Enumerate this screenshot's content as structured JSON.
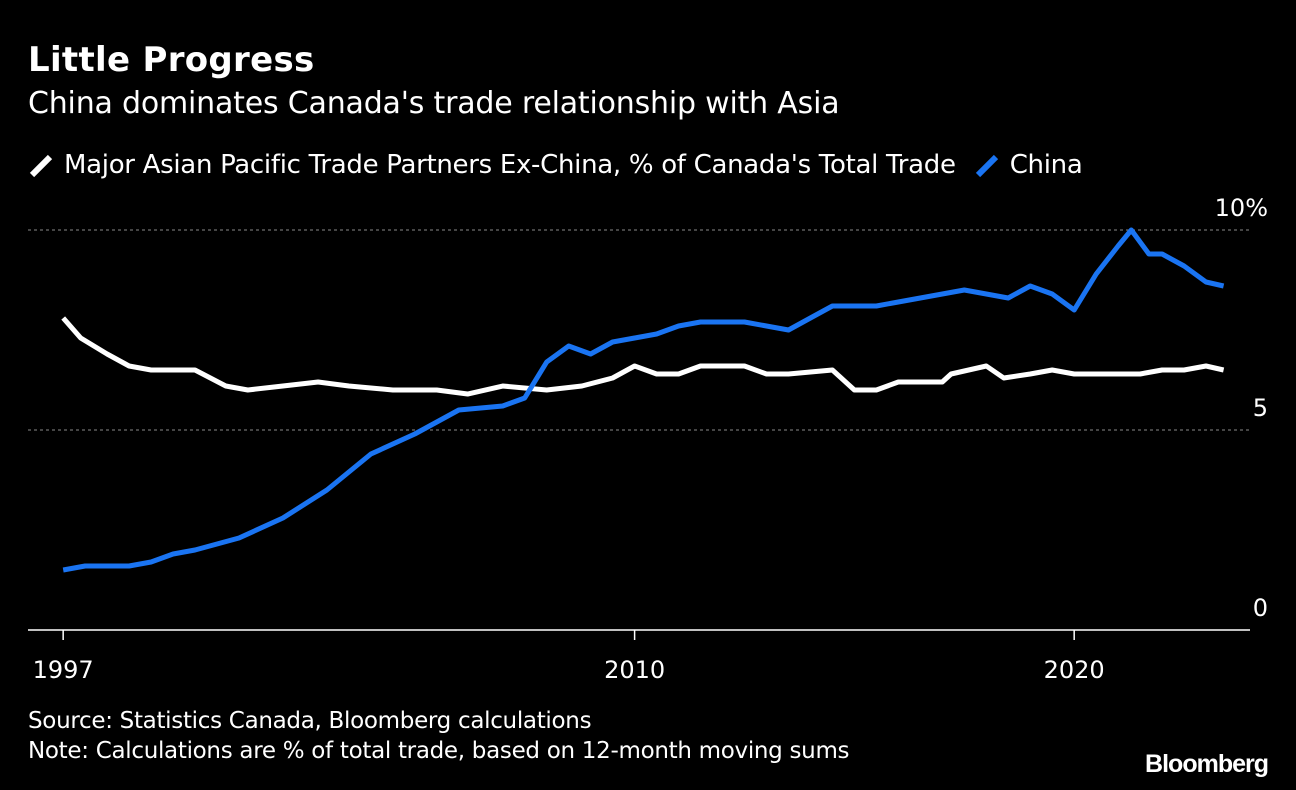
{
  "header": {
    "title": "Little Progress",
    "subtitle": "China dominates Canada's trade relationship with Asia"
  },
  "legend": [
    {
      "label": "Major Asian Pacific Trade Partners Ex-China, % of Canada's Total Trade",
      "color": "#ffffff"
    },
    {
      "label": "China",
      "color": "#1a74f2"
    }
  ],
  "footer": {
    "source": "Source: Statistics Canada, Bloomberg calculations",
    "note": "Note: Calculations are % of total trade, based on 12-month moving sums",
    "brand": "Bloomberg"
  },
  "chart_data": {
    "type": "line",
    "title": "Little Progress",
    "subtitle": "China dominates Canada's trade relationship with Asia",
    "xlim": [
      1996.2,
      2024.0
    ],
    "ylim": [
      0,
      10
    ],
    "x_ticks": [
      {
        "value": 1997,
        "label": "1997"
      },
      {
        "value": 2010,
        "label": "2010"
      },
      {
        "value": 2020,
        "label": "2020"
      }
    ],
    "y_ticks": [
      {
        "value": 10,
        "label": "10%"
      },
      {
        "value": 5,
        "label": "5"
      },
      {
        "value": 0,
        "label": "0"
      }
    ],
    "grid": true,
    "legend_position": "top-left",
    "series": [
      {
        "name": "Major Asian Pacific Trade Partners Ex-China, % of Canada's Total Trade",
        "color": "#ffffff",
        "x": [
          1997.0,
          1997.4,
          1998.0,
          1998.5,
          1999.0,
          1999.5,
          2000.0,
          2000.7,
          2001.2,
          2002.0,
          2002.8,
          2003.5,
          2004.5,
          2005.5,
          2006.2,
          2007.0,
          2008.0,
          2008.8,
          2009.5,
          2010.0,
          2010.5,
          2011.0,
          2011.5,
          2012.0,
          2012.5,
          2013.0,
          2013.5,
          2014.5,
          2015.0,
          2015.5,
          2016.0,
          2016.5,
          2017.0,
          2017.2,
          2018.0,
          2018.4,
          2019.0,
          2019.5,
          2020.0,
          2020.5,
          2021.0,
          2021.5,
          2022.0,
          2022.5,
          2023.0,
          2023.4
        ],
        "values": [
          7.8,
          7.3,
          6.9,
          6.6,
          6.5,
          6.5,
          6.5,
          6.1,
          6.0,
          6.1,
          6.2,
          6.1,
          6.0,
          6.0,
          5.9,
          6.1,
          6.0,
          6.1,
          6.3,
          6.6,
          6.4,
          6.4,
          6.6,
          6.6,
          6.6,
          6.4,
          6.4,
          6.5,
          6.0,
          6.0,
          6.2,
          6.2,
          6.2,
          6.4,
          6.6,
          6.3,
          6.4,
          6.5,
          6.4,
          6.4,
          6.4,
          6.4,
          6.5,
          6.5,
          6.6,
          6.5
        ]
      },
      {
        "name": "China",
        "color": "#1a74f2",
        "x": [
          1997.0,
          1997.5,
          1998.0,
          1998.5,
          1999.0,
          1999.5,
          2000.0,
          2001.0,
          2002.0,
          2003.0,
          2004.0,
          2005.0,
          2006.0,
          2007.0,
          2007.5,
          2008.0,
          2008.5,
          2009.0,
          2009.5,
          2010.0,
          2010.5,
          2011.0,
          2011.5,
          2012.0,
          2012.5,
          2013.0,
          2013.5,
          2014.0,
          2014.5,
          2015.0,
          2015.5,
          2016.0,
          2016.5,
          2017.0,
          2017.5,
          2018.0,
          2018.5,
          2019.0,
          2019.5,
          2020.0,
          2020.5,
          2021.0,
          2021.3,
          2021.7,
          2022.0,
          2022.5,
          2023.0,
          2023.4
        ],
        "values": [
          1.5,
          1.6,
          1.6,
          1.6,
          1.7,
          1.9,
          2.0,
          2.3,
          2.8,
          3.5,
          4.4,
          4.9,
          5.5,
          5.6,
          5.8,
          6.7,
          7.1,
          6.9,
          7.2,
          7.3,
          7.4,
          7.6,
          7.7,
          7.7,
          7.7,
          7.6,
          7.5,
          7.8,
          8.1,
          8.1,
          8.1,
          8.2,
          8.3,
          8.4,
          8.5,
          8.4,
          8.3,
          8.6,
          8.4,
          8.0,
          8.9,
          9.6,
          10.0,
          9.4,
          9.4,
          9.1,
          8.7,
          8.6
        ]
      }
    ]
  }
}
